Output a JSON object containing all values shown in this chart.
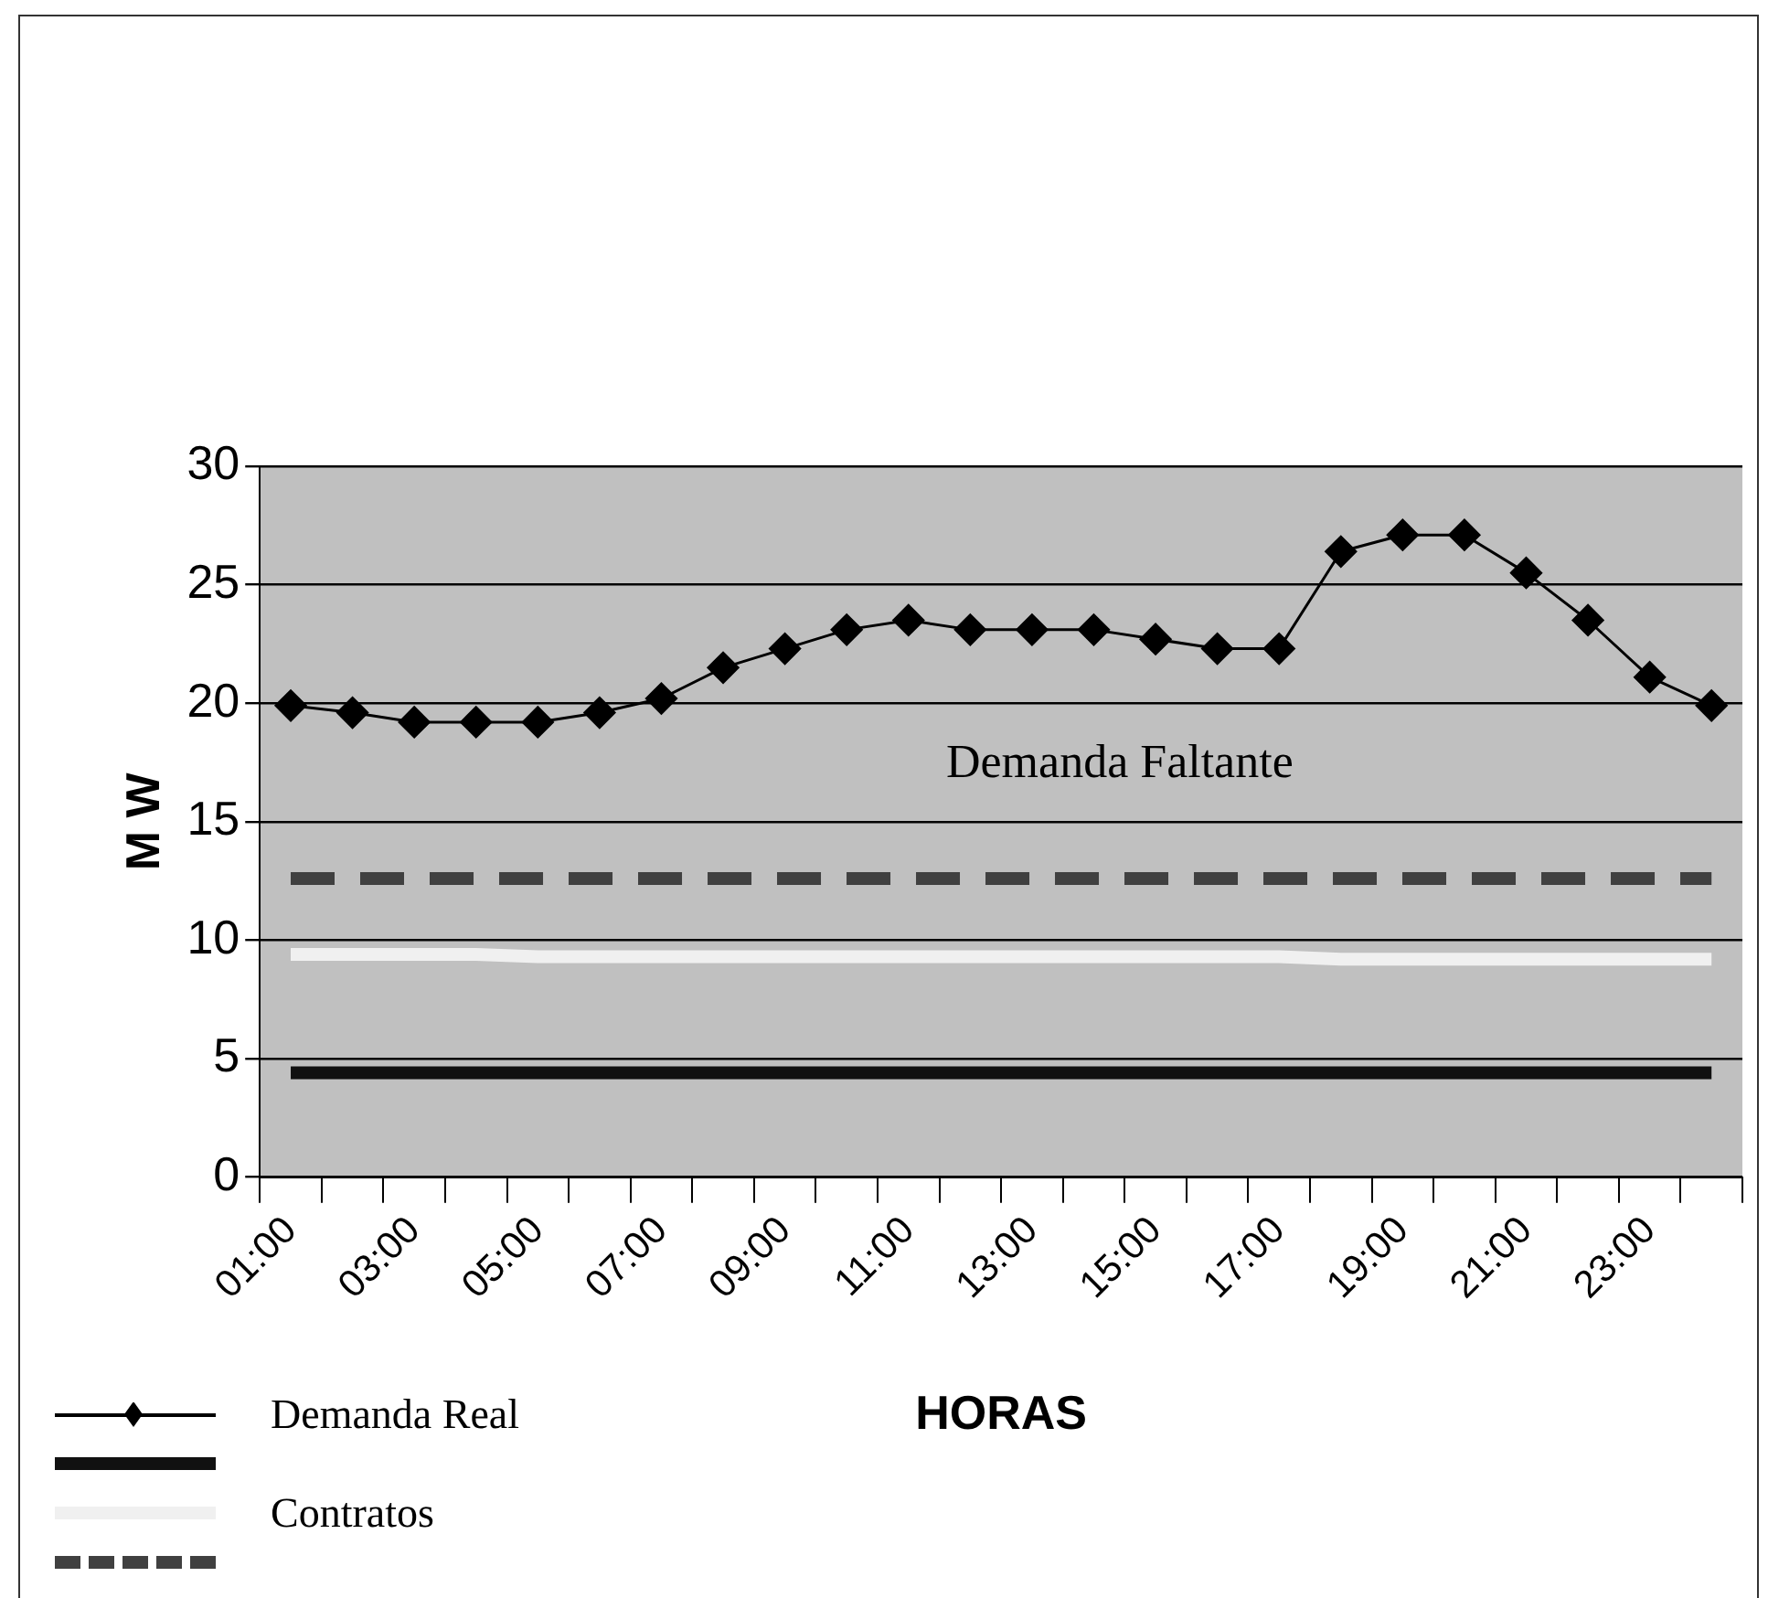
{
  "chart_data": {
    "type": "line",
    "xlabel": "HORAS",
    "ylabel": "M W",
    "categories": [
      "01:00",
      null,
      "03:00",
      null,
      "05:00",
      null,
      "07:00",
      null,
      "09:00",
      null,
      "11:00",
      null,
      "13:00",
      null,
      "15:00",
      null,
      "17:00",
      null,
      "19:00",
      null,
      "21:00",
      null,
      "23:00",
      null
    ],
    "series": [
      {
        "name": "Demanda Real",
        "color": "#000000",
        "marker": "diamond",
        "line_style": "solid",
        "values": [
          19.9,
          19.6,
          19.2,
          19.2,
          19.2,
          19.6,
          20.2,
          21.5,
          22.3,
          23.1,
          23.5,
          23.1,
          23.1,
          23.1,
          22.7,
          22.3,
          22.3,
          26.4,
          27.1,
          27.1,
          25.5,
          23.5,
          21.1,
          19.9
        ]
      },
      {
        "color": "#111111",
        "marker": "none",
        "line_style": "solid",
        "values": [
          4.4,
          4.4,
          4.4,
          4.4,
          4.4,
          4.4,
          4.4,
          4.4,
          4.4,
          4.4,
          4.4,
          4.4,
          4.4,
          4.4,
          4.4,
          4.4,
          4.4,
          4.4,
          4.4,
          4.4,
          4.4,
          4.4,
          4.4,
          4.4
        ]
      },
      {
        "name": "Contratos",
        "color": "#f0f0f0",
        "marker": "none",
        "line_style": "solid",
        "values": [
          9.4,
          9.4,
          9.4,
          9.4,
          9.3,
          9.3,
          9.3,
          9.3,
          9.3,
          9.3,
          9.3,
          9.3,
          9.3,
          9.3,
          9.3,
          9.3,
          9.3,
          9.2,
          9.2,
          9.2,
          9.2,
          9.2,
          9.2,
          9.2
        ]
      },
      {
        "color": "#404040",
        "marker": "none",
        "line_style": "dashed",
        "values": [
          12.6,
          12.6,
          12.6,
          12.6,
          12.6,
          12.6,
          12.6,
          12.6,
          12.6,
          12.6,
          12.6,
          12.6,
          12.6,
          12.6,
          12.6,
          12.6,
          12.6,
          12.6,
          12.6,
          12.6,
          12.6,
          12.6,
          12.6,
          12.6
        ]
      }
    ],
    "ylim": [
      0,
      30
    ],
    "yticks": [
      0,
      5,
      10,
      15,
      20,
      25,
      30
    ],
    "grid": "y",
    "legend": "bottom left",
    "annotations": [
      "Demanda Faltante"
    ]
  }
}
